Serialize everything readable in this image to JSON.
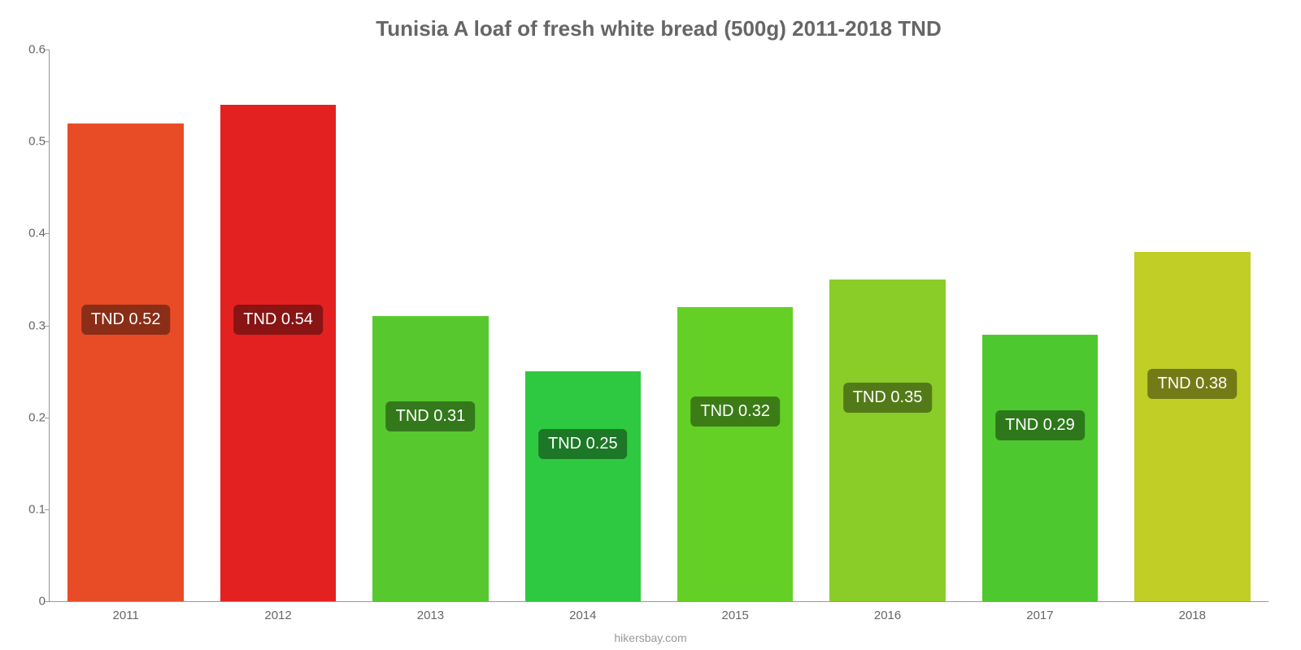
{
  "chart": {
    "type": "bar",
    "title": "Tunisia A loaf of fresh white bread (500g) 2011-2018 TND",
    "title_color": "#666666",
    "title_fontsize": 26,
    "background_color": "#ffffff",
    "axis_color": "#999999",
    "tick_font_color": "#666666",
    "tick_fontsize": 15,
    "ylim": [
      0,
      0.6
    ],
    "yticks": [
      0,
      0.1,
      0.2,
      0.3,
      0.4,
      0.5,
      0.6
    ],
    "bar_width_ratio": 0.76,
    "data_label_fontsize": 20,
    "data_label_text_color": "#ffffff",
    "data_label_radius": 6,
    "source_text": "hikersbay.com",
    "source_color": "#999999",
    "bars": [
      {
        "category": "2011",
        "value": 0.52,
        "label": "TND 0.52",
        "bar_color": "#e84c27",
        "label_bg": "#8a2e17",
        "label_y": 0.29
      },
      {
        "category": "2012",
        "value": 0.54,
        "label": "TND 0.54",
        "bar_color": "#e42121",
        "label_bg": "#881414",
        "label_y": 0.29
      },
      {
        "category": "2013",
        "value": 0.31,
        "label": "TND 0.31",
        "bar_color": "#57c92f",
        "label_bg": "#34781c",
        "label_y": 0.185
      },
      {
        "category": "2014",
        "value": 0.25,
        "label": "TND 0.25",
        "bar_color": "#2ec940",
        "label_bg": "#1c7826",
        "label_y": 0.155
      },
      {
        "category": "2015",
        "value": 0.32,
        "label": "TND 0.32",
        "bar_color": "#64d026",
        "label_bg": "#3c7c17",
        "label_y": 0.19
      },
      {
        "category": "2016",
        "value": 0.35,
        "label": "TND 0.35",
        "bar_color": "#8acc28",
        "label_bg": "#537a18",
        "label_y": 0.205
      },
      {
        "category": "2017",
        "value": 0.29,
        "label": "TND 0.29",
        "bar_color": "#4dc92f",
        "label_bg": "#2e781c",
        "label_y": 0.175
      },
      {
        "category": "2018",
        "value": 0.38,
        "label": "TND 0.38",
        "bar_color": "#c0ce25",
        "label_bg": "#737b16",
        "label_y": 0.22
      }
    ]
  }
}
